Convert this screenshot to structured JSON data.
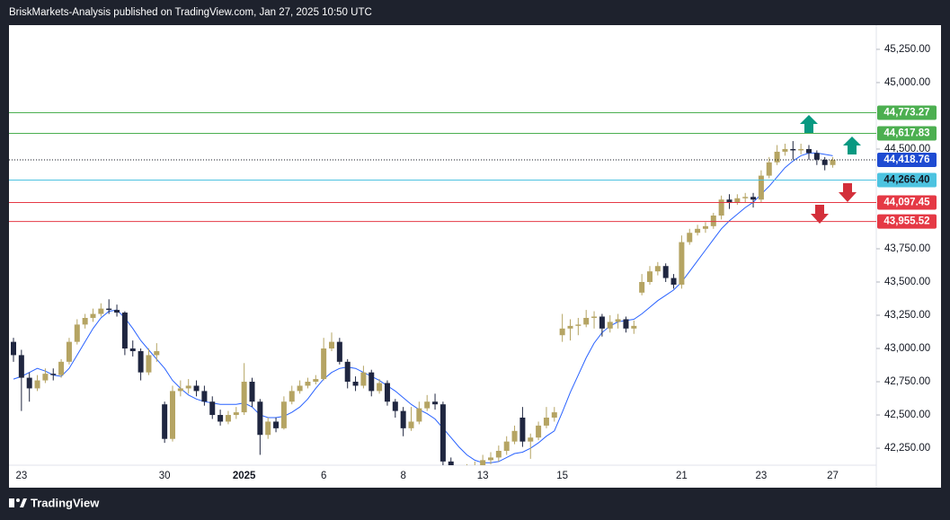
{
  "header": "BriskMarkets-Analysis published on TradingView.com, Jan 27, 2025 10:50 UTC",
  "footer": "TradingView",
  "chart_data": {
    "type": "candlestick",
    "up_color": "#b5a463",
    "down_color": "#1f2640",
    "categories": [
      null,
      "23",
      null,
      null,
      null,
      null,
      null,
      null,
      null,
      null,
      null,
      null,
      null,
      null,
      null,
      null,
      null,
      null,
      null,
      "30",
      null,
      null,
      null,
      null,
      null,
      null,
      null,
      null,
      null,
      "2025",
      null,
      null,
      null,
      null,
      null,
      null,
      null,
      null,
      null,
      "6",
      null,
      null,
      null,
      null,
      null,
      null,
      null,
      null,
      null,
      "8",
      null,
      null,
      null,
      null,
      null,
      null,
      null,
      null,
      null,
      "13",
      null,
      null,
      null,
      null,
      null,
      null,
      null,
      null,
      null,
      "15",
      null,
      null,
      null,
      null,
      null,
      null,
      null,
      null,
      null,
      null,
      null,
      null,
      null,
      null,
      "21",
      null,
      null,
      null,
      null,
      null,
      null,
      null,
      null,
      null,
      "23",
      null,
      null,
      null,
      null,
      null,
      null,
      null,
      null,
      "27"
    ],
    "open": [
      43050,
      42950,
      42780,
      42700,
      42760,
      42810,
      42800,
      42900,
      43050,
      43180,
      43230,
      43260,
      43300,
      43290,
      43270,
      43000,
      42980,
      42820,
      42950,
      42580,
      42320,
      42680,
      42700,
      42720,
      42680,
      42600,
      42500,
      42450,
      42500,
      42520,
      42750,
      42600,
      42350,
      42450,
      42400,
      42600,
      42680,
      42720,
      42750,
      42770,
      43000,
      43050,
      42900,
      42750,
      42720,
      42820,
      42680,
      42740,
      42600,
      42530,
      42400,
      42450,
      42550,
      42600,
      42580,
      42150,
      42080,
      42060,
      42100,
      42110,
      42160,
      42180,
      42230,
      42300,
      42480,
      42300,
      42330,
      42420,
      42480,
      43100,
      43150,
      43170,
      43180,
      43230,
      43240,
      43150,
      43200,
      43220,
      43150,
      43420,
      43500,
      43580,
      43620,
      43530,
      43480,
      43800,
      43870,
      43900,
      43920,
      44000,
      44120,
      44100,
      44130,
      44140,
      44120,
      44300,
      44400,
      44480,
      44500,
      44490,
      44500,
      44470,
      44420,
      44380
    ],
    "high": [
      43080,
      42990,
      42820,
      42800,
      42850,
      42850,
      42920,
      43080,
      43220,
      43260,
      43300,
      43340,
      43370,
      43330,
      43280,
      43060,
      43000,
      43000,
      43040,
      42600,
      42720,
      42760,
      42770,
      42760,
      42720,
      42640,
      42540,
      42530,
      42560,
      42890,
      42780,
      42620,
      42480,
      42480,
      42640,
      42720,
      42760,
      42780,
      42800,
      43080,
      43120,
      43080,
      42920,
      42790,
      42870,
      42840,
      42770,
      42760,
      42620,
      42560,
      42560,
      42600,
      42650,
      42660,
      42600,
      42180,
      42120,
      42130,
      42150,
      42200,
      42220,
      42270,
      42340,
      42420,
      42560,
      42360,
      42450,
      42560,
      42560,
      43260,
      43220,
      43230,
      43290,
      43280,
      43260,
      43250,
      43260,
      43240,
      43210,
      43560,
      43620,
      43650,
      43640,
      43560,
      43850,
      43900,
      43930,
      43950,
      44020,
      44150,
      44160,
      44160,
      44170,
      44170,
      44340,
      44440,
      44530,
      44540,
      44560,
      44540,
      44530,
      44490,
      44440,
      44440
    ],
    "low": [
      42900,
      42530,
      42600,
      42680,
      42740,
      42760,
      42780,
      42880,
      43030,
      43150,
      43200,
      43240,
      43260,
      43240,
      42950,
      42940,
      42760,
      42800,
      42900,
      42290,
      42300,
      42640,
      42660,
      42640,
      42570,
      42470,
      42420,
      42430,
      42470,
      42500,
      42560,
      42200,
      42320,
      42370,
      42390,
      42580,
      42660,
      42700,
      42730,
      42760,
      42980,
      42880,
      42700,
      42680,
      42700,
      42640,
      42660,
      42570,
      42480,
      42340,
      42380,
      42430,
      42530,
      42540,
      42100,
      42040,
      42010,
      42040,
      42060,
      42090,
      42130,
      42150,
      42200,
      42280,
      42260,
      42170,
      42310,
      42400,
      42450,
      43050,
      43060,
      43100,
      43160,
      43150,
      43090,
      43120,
      43150,
      43120,
      43110,
      43400,
      43480,
      43550,
      43500,
      43450,
      43450,
      43780,
      43850,
      43870,
      43900,
      43970,
      44050,
      44080,
      44100,
      44060,
      44100,
      44280,
      44380,
      44450,
      44420,
      44460,
      44420,
      44380,
      44340,
      44360
    ],
    "close": [
      42950,
      42780,
      42700,
      42760,
      42810,
      42800,
      42900,
      43050,
      43180,
      43230,
      43260,
      43300,
      43290,
      43270,
      43000,
      42980,
      42820,
      42950,
      42980,
      42320,
      42680,
      42700,
      42720,
      42680,
      42600,
      42500,
      42450,
      42500,
      42520,
      42750,
      42600,
      42350,
      42450,
      42400,
      42600,
      42680,
      42720,
      42750,
      42770,
      43000,
      43050,
      42900,
      42750,
      42720,
      42820,
      42680,
      42740,
      42600,
      42530,
      42400,
      42450,
      42550,
      42600,
      42580,
      42150,
      42080,
      42060,
      42100,
      42110,
      42160,
      42180,
      42230,
      42300,
      42380,
      42300,
      42330,
      42420,
      42480,
      42520,
      43150,
      43170,
      43180,
      43230,
      43240,
      43150,
      43200,
      43220,
      43150,
      43170,
      43500,
      43580,
      43620,
      43530,
      43480,
      43800,
      43870,
      43900,
      43920,
      44000,
      44120,
      44100,
      44130,
      44140,
      44120,
      44300,
      44400,
      44480,
      44500,
      44490,
      44500,
      44470,
      44420,
      44380,
      44418.76
    ],
    "ma": {
      "type": "line",
      "color": "#2962ff",
      "values": [
        42770,
        42790,
        42820,
        42850,
        42830,
        42800,
        42790,
        42850,
        42950,
        43050,
        43150,
        43230,
        43280,
        43290,
        43230,
        43150,
        43060,
        42990,
        42920,
        42850,
        42760,
        42700,
        42650,
        42620,
        42600,
        42590,
        42580,
        42580,
        42580,
        42590,
        42560,
        42500,
        42480,
        42480,
        42490,
        42520,
        42560,
        42620,
        42700,
        42770,
        42820,
        42850,
        42860,
        42850,
        42820,
        42790,
        42760,
        42720,
        42680,
        42630,
        42580,
        42540,
        42510,
        42470,
        42400,
        42330,
        42260,
        42200,
        42160,
        42140,
        42140,
        42150,
        42180,
        42210,
        42220,
        42250,
        42290,
        42340,
        42380,
        42520,
        42670,
        42800,
        42930,
        43040,
        43120,
        43170,
        43200,
        43210,
        43220,
        43260,
        43310,
        43360,
        43400,
        43440,
        43500,
        43580,
        43660,
        43740,
        43820,
        43900,
        43960,
        44010,
        44060,
        44100,
        44160,
        44220,
        44290,
        44360,
        44410,
        44450,
        44470,
        44470,
        44460,
        44450
      ]
    },
    "levels": [
      {
        "value": 44773.27,
        "label": "44,773.27",
        "color": "#4caf50",
        "text_color": "#ffffff",
        "style": "solid"
      },
      {
        "value": 44617.83,
        "label": "44,617.83",
        "color": "#4caf50",
        "text_color": "#ffffff",
        "style": "solid"
      },
      {
        "value": 44418.76,
        "label": "44,418.76",
        "color": "#1e4bd2",
        "text_color": "#ffffff",
        "style": "dotted"
      },
      {
        "value": 44266.4,
        "label": "44,266.40",
        "color": "#4dc3e0",
        "text_color": "#131722",
        "style": "solid"
      },
      {
        "value": 44097.45,
        "label": "44,097.45",
        "color": "#e53945",
        "text_color": "#ffffff",
        "style": "solid"
      },
      {
        "value": 43955.52,
        "label": "43,955.52",
        "color": "#e53945",
        "text_color": "#ffffff",
        "style": "solid"
      }
    ],
    "ylim": [
      42122,
      45432
    ],
    "yticks": [
      {
        "value": 42250,
        "label": "42,250.00"
      },
      {
        "value": 42500,
        "label": "42,500.00"
      },
      {
        "value": 42750,
        "label": "42,750.00"
      },
      {
        "value": 43000,
        "label": "43,000.00"
      },
      {
        "value": 43250,
        "label": "43,250.00"
      },
      {
        "value": 43500,
        "label": "43,500.00"
      },
      {
        "value": 43750,
        "label": "43,750.00"
      },
      {
        "value": 44500,
        "label": "44,500.00"
      },
      {
        "value": 45000,
        "label": "45,000.00"
      },
      {
        "value": 45250,
        "label": "45,250.00"
      }
    ]
  }
}
